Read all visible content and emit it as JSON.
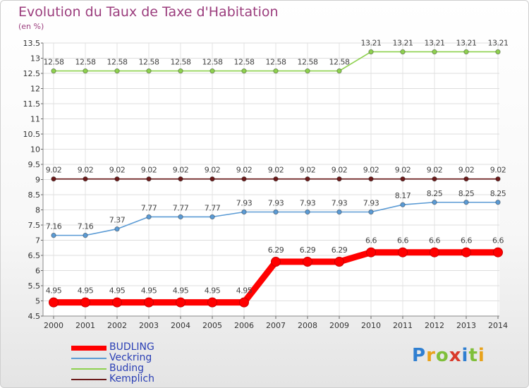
{
  "chart_data": {
    "type": "line",
    "title": "Evolution du Taux de Taxe d'Habitation",
    "unit_label": "(en %)",
    "x": [
      "2000",
      "2001",
      "2002",
      "2003",
      "2004",
      "2005",
      "2006",
      "2007",
      "2008",
      "2009",
      "2010",
      "2011",
      "2012",
      "2013",
      "2014"
    ],
    "ylim": [
      4.5,
      13.5
    ],
    "yticks": [
      "4.5",
      "5",
      "5.5",
      "6",
      "6.5",
      "7",
      "7.5",
      "8",
      "8.5",
      "9",
      "9.5",
      "10",
      "10.5",
      "11",
      "11.5",
      "12",
      "12.5",
      "13",
      "13.5"
    ],
    "grid": true,
    "legend_position": "bottom-left",
    "series": [
      {
        "name": "BUDLING",
        "color": "#ff0000",
        "values": [
          4.95,
          4.95,
          4.95,
          4.95,
          4.95,
          4.95,
          4.95,
          6.29,
          6.29,
          6.29,
          6.6,
          6.6,
          6.6,
          6.6,
          6.6
        ],
        "labels": [
          "4.95",
          "4.95",
          "4.95",
          "4.95",
          "4.95",
          "4.95",
          "4.95",
          "6.29",
          "6.29",
          "6.29",
          "6.6",
          "6.6",
          "6.6",
          "6.6",
          "6.6"
        ]
      },
      {
        "name": "Veckring",
        "color": "#5b9bd5",
        "values": [
          7.16,
          7.16,
          7.37,
          7.77,
          7.77,
          7.77,
          7.93,
          7.93,
          7.93,
          7.93,
          7.93,
          8.17,
          8.25,
          8.25,
          8.25
        ],
        "labels": [
          "7.16",
          "7.16",
          "7.37",
          "7.77",
          "7.77",
          "7.77",
          "7.93",
          "7.93",
          "7.93",
          "7.93",
          "7.93",
          "8.17",
          "8.25",
          "8.25",
          "8.25"
        ]
      },
      {
        "name": "Buding",
        "color": "#8ed14f",
        "values": [
          12.58,
          12.58,
          12.58,
          12.58,
          12.58,
          12.58,
          12.58,
          12.58,
          12.58,
          12.58,
          13.21,
          13.21,
          13.21,
          13.21,
          13.21
        ],
        "labels": [
          "12.58",
          "12.58",
          "12.58",
          "12.58",
          "12.58",
          "12.58",
          "12.58",
          "12.58",
          "12.58",
          "12.58",
          "13.21",
          "13.21",
          "13.21",
          "13.21",
          "13.21"
        ]
      },
      {
        "name": "Kemplich",
        "color": "#6b1a1a",
        "values": [
          9.02,
          9.02,
          9.02,
          9.02,
          9.02,
          9.02,
          9.02,
          9.02,
          9.02,
          9.02,
          9.02,
          9.02,
          9.02,
          9.02,
          9.02
        ],
        "labels": [
          "9.02",
          "9.02",
          "9.02",
          "9.02",
          "9.02",
          "9.02",
          "9.02",
          "9.02",
          "9.02",
          "9.02",
          "9.02",
          "9.02",
          "9.02",
          "9.02",
          "9.02"
        ]
      }
    ]
  },
  "legend": {
    "items": [
      {
        "label": "BUDLING",
        "color": "#ff0000"
      },
      {
        "label": "Veckring",
        "color": "#5b9bd5"
      },
      {
        "label": "Buding",
        "color": "#8ed14f"
      },
      {
        "label": "Kemplich",
        "color": "#6b1a1a"
      }
    ]
  },
  "logo": {
    "text": "Proxiti"
  }
}
